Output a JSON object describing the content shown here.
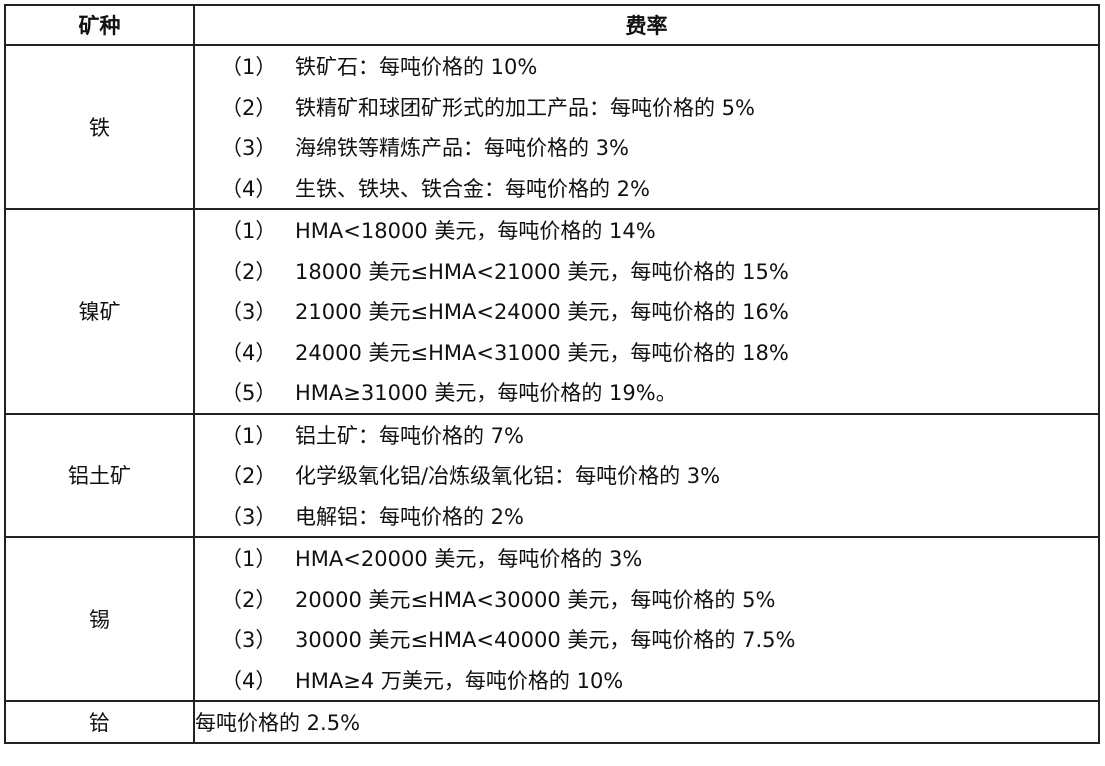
{
  "header": {
    "col1": "矿种",
    "col2": "费率"
  },
  "rows": [
    {
      "mineral": "铁",
      "items": [
        {
          "idx": "（1）",
          "text": "铁矿石：每吨价格的 10%"
        },
        {
          "idx": "（2）",
          "text": "铁精矿和球团矿形式的加工产品：每吨价格的 5%"
        },
        {
          "idx": "（3）",
          "text": "海绵铁等精炼产品：每吨价格的 3%"
        },
        {
          "idx": "（4）",
          "text": "生铁、铁块、铁合金：每吨价格的 2%"
        }
      ]
    },
    {
      "mineral": "镍矿",
      "items": [
        {
          "idx": "（1）",
          "text": "HMA<18000 美元，每吨价格的 14%"
        },
        {
          "idx": "（2）",
          "text": "18000 美元≤HMA<21000 美元，每吨价格的 15%"
        },
        {
          "idx": "（3）",
          "text": "21000 美元≤HMA<24000 美元，每吨价格的 16%"
        },
        {
          "idx": "（4）",
          "text": "24000 美元≤HMA<31000 美元，每吨价格的 18%"
        },
        {
          "idx": "（5）",
          "text": "HMA≥31000 美元，每吨价格的 19%。"
        }
      ]
    },
    {
      "mineral": "铝土矿",
      "items": [
        {
          "idx": "（1）",
          "text": "铝土矿：每吨价格的 7%"
        },
        {
          "idx": "（2）",
          "text": "化学级氧化铝/冶炼级氧化铝：每吨价格的 3%"
        },
        {
          "idx": "（3）",
          "text": "电解铝：每吨价格的 2%"
        }
      ]
    },
    {
      "mineral": "锡",
      "items": [
        {
          "idx": "（1）",
          "text": "HMA<20000 美元，每吨价格的 3%"
        },
        {
          "idx": "（2）",
          "text": "20000 美元≤HMA<30000 美元，每吨价格的 5%"
        },
        {
          "idx": "（3）",
          "text": "30000 美元≤HMA<40000 美元，每吨价格的 7.5%"
        },
        {
          "idx": "（4）",
          "text": "HMA≥4 万美元，每吨价格的 10%"
        }
      ]
    },
    {
      "mineral": "铪",
      "single": "每吨价格的 2.5%"
    }
  ]
}
